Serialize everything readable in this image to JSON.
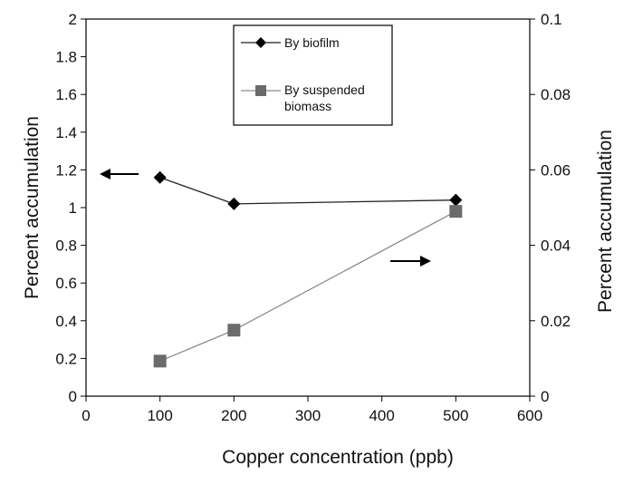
{
  "chart_data": {
    "type": "line",
    "xlabel": "Copper concentration (ppb)",
    "ylabel": "Percent accumulation",
    "y2label": "Percent accumulation",
    "xlim": [
      0,
      600
    ],
    "ylim": [
      0,
      2
    ],
    "y2lim": [
      0,
      0.1
    ],
    "x_ticks": [
      "0",
      "100",
      "200",
      "300",
      "400",
      "500",
      "600"
    ],
    "y_ticks": [
      "0",
      "0.2",
      "0.4",
      "0.6",
      "0.8",
      "1",
      "1.2",
      "1.4",
      "1.6",
      "1.8",
      "2"
    ],
    "y2_ticks": [
      "0",
      "0.02",
      "0.04",
      "0.06",
      "0.08",
      "0.1"
    ],
    "grid": false,
    "legend_position": "top-center",
    "series": [
      {
        "name": "By biofilm",
        "axis": "left",
        "marker": "diamond",
        "line_color": "#222222",
        "x": [
          100,
          200,
          500
        ],
        "y": [
          1.16,
          1.02,
          1.04
        ]
      },
      {
        "name": "By suspended biomass",
        "axis": "right",
        "marker": "square",
        "line_color": "#8a8a8a",
        "marker_color": "#6b6b6b",
        "x": [
          100,
          200,
          500
        ],
        "y": [
          0.0093,
          0.0175,
          0.049
        ]
      }
    ],
    "annotations": [
      {
        "type": "arrow",
        "direction": "left",
        "meaning": "points to left axis (By biofilm)"
      },
      {
        "type": "arrow",
        "direction": "right",
        "meaning": "points to right axis (By suspended biomass)"
      }
    ]
  }
}
